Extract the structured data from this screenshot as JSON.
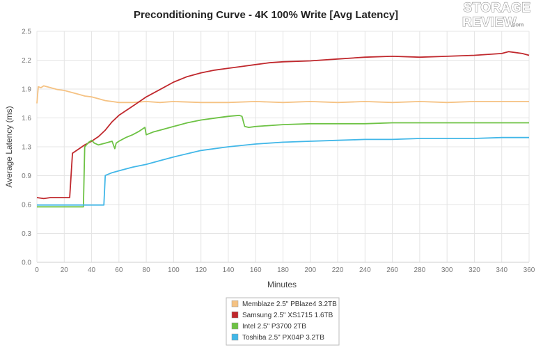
{
  "chart_data": {
    "type": "line",
    "title": "Preconditioning Curve - 4K 100% Write [Avg Latency]",
    "xlabel": "Minutes",
    "ylabel": "Average Latency (ms)",
    "xlim": [
      0,
      360
    ],
    "ylim": [
      0.0,
      2.5
    ],
    "x_ticks": [
      0,
      20,
      40,
      60,
      80,
      100,
      120,
      140,
      160,
      180,
      200,
      220,
      240,
      260,
      280,
      300,
      320,
      340,
      360
    ],
    "y_ticks": [
      "0.0",
      "0.3",
      "0.6",
      "0.9",
      "1.3",
      "1.6",
      "1.9",
      "2.2",
      "2.5"
    ],
    "y_tick_values": [
      0.0,
      0.3125,
      0.625,
      0.9375,
      1.25,
      1.5625,
      1.875,
      2.1875,
      2.5
    ],
    "grid": true,
    "legend_position": "bottom-center",
    "series": [
      {
        "name": "Memblaze 2.5\" PBlaze4 3.2TB",
        "color": "#f5c283",
        "x": [
          0,
          1,
          3,
          5,
          10,
          15,
          20,
          25,
          30,
          35,
          40,
          45,
          50,
          55,
          60,
          70,
          80,
          90,
          100,
          120,
          140,
          160,
          180,
          200,
          220,
          240,
          260,
          280,
          300,
          320,
          340,
          360
        ],
        "y": [
          1.72,
          1.9,
          1.89,
          1.91,
          1.89,
          1.87,
          1.86,
          1.84,
          1.82,
          1.8,
          1.79,
          1.77,
          1.75,
          1.74,
          1.73,
          1.73,
          1.74,
          1.73,
          1.74,
          1.73,
          1.73,
          1.74,
          1.73,
          1.74,
          1.73,
          1.74,
          1.73,
          1.74,
          1.73,
          1.74,
          1.74,
          1.74
        ]
      },
      {
        "name": "Samsung 2.5\" XS1715 1.6TB",
        "color": "#c0282d",
        "x": [
          0,
          5,
          10,
          20,
          24,
          26,
          30,
          35,
          40,
          45,
          50,
          55,
          60,
          70,
          80,
          90,
          100,
          110,
          120,
          130,
          140,
          150,
          160,
          170,
          180,
          200,
          220,
          240,
          260,
          280,
          300,
          320,
          340,
          345,
          355,
          360
        ],
        "y": [
          0.7,
          0.69,
          0.7,
          0.7,
          0.7,
          1.18,
          1.22,
          1.27,
          1.31,
          1.36,
          1.43,
          1.52,
          1.59,
          1.69,
          1.79,
          1.87,
          1.95,
          2.01,
          2.05,
          2.08,
          2.1,
          2.12,
          2.14,
          2.16,
          2.17,
          2.18,
          2.2,
          2.22,
          2.23,
          2.22,
          2.23,
          2.24,
          2.26,
          2.28,
          2.26,
          2.24
        ]
      },
      {
        "name": "Intel 2.5\" P3700 2TB",
        "color": "#6dc244",
        "x": [
          0,
          5,
          10,
          20,
          30,
          34,
          35,
          38,
          40,
          42,
          45,
          50,
          55,
          57,
          58,
          60,
          65,
          70,
          75,
          79,
          80,
          85,
          90,
          100,
          110,
          120,
          130,
          140,
          148,
          150,
          152,
          155,
          160,
          180,
          200,
          220,
          240,
          260,
          280,
          300,
          320,
          340,
          360
        ],
        "y": [
          0.6,
          0.6,
          0.6,
          0.6,
          0.6,
          0.6,
          1.25,
          1.3,
          1.32,
          1.29,
          1.27,
          1.29,
          1.31,
          1.23,
          1.29,
          1.31,
          1.35,
          1.38,
          1.42,
          1.46,
          1.38,
          1.41,
          1.43,
          1.47,
          1.51,
          1.54,
          1.56,
          1.58,
          1.59,
          1.58,
          1.47,
          1.46,
          1.47,
          1.49,
          1.5,
          1.5,
          1.5,
          1.51,
          1.51,
          1.51,
          1.51,
          1.51,
          1.51
        ]
      },
      {
        "name": "Toshiba 2.5\" PX04P 3.2TB",
        "color": "#41b7e8",
        "x": [
          0,
          5,
          10,
          20,
          30,
          40,
          49,
          50,
          55,
          60,
          70,
          80,
          90,
          100,
          120,
          140,
          160,
          180,
          200,
          220,
          240,
          260,
          280,
          300,
          320,
          340,
          360
        ],
        "y": [
          0.62,
          0.62,
          0.62,
          0.62,
          0.62,
          0.62,
          0.62,
          0.94,
          0.97,
          0.99,
          1.03,
          1.06,
          1.1,
          1.14,
          1.21,
          1.25,
          1.28,
          1.3,
          1.31,
          1.32,
          1.33,
          1.33,
          1.34,
          1.34,
          1.34,
          1.35,
          1.35
        ]
      }
    ]
  },
  "logo": {
    "line1": "STORAGE",
    "line2": "REVIEW",
    "suffix": ".com"
  }
}
